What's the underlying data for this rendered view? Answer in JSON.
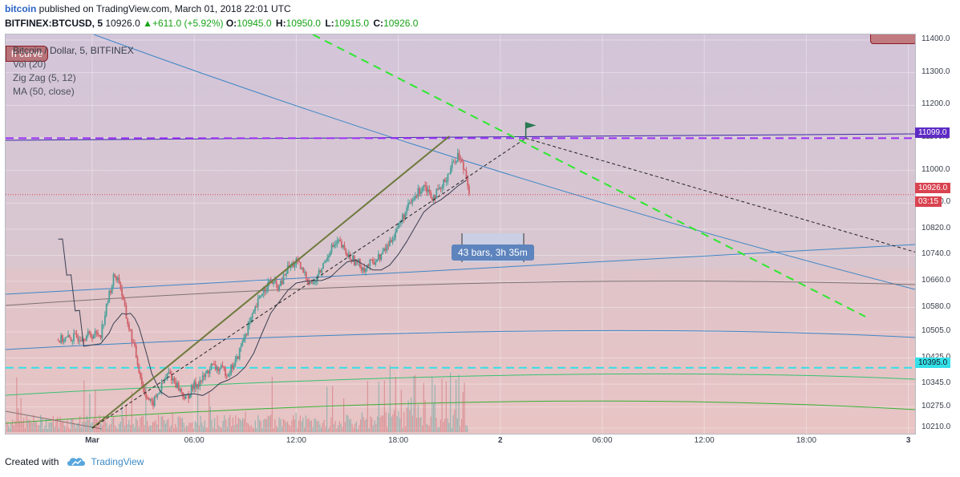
{
  "header": {
    "publisher": "bitcoin",
    "published_text": "published on TradingView.com, March 01, 2018 22:01 UTC",
    "symbol": "BITFINEX:BTCUSD, 5",
    "last": "10926.0",
    "change": "+611.0 (+5.92%)",
    "o_label": "O:",
    "o": "10945.0",
    "h_label": "H:",
    "h": "10950.0",
    "l_label": "L:",
    "l": "10915.0",
    "c_label": "C:",
    "c": "10926.0"
  },
  "legend": {
    "series_title": "Bitcoin / Dollar, 5, BITFINEX",
    "badge": "h curve",
    "vol": "Vol (20)",
    "zigzag": "Zig Zag (5, 12)",
    "ma": "MA (50, close)"
  },
  "tooltip": "43 bars, 3h 35m",
  "price_tags": {
    "upper_line": "11099.0",
    "last_price": "10926.0",
    "countdown": "03:15",
    "lower_line": "10395.0"
  },
  "colors": {
    "up": "#4ca09a",
    "down": "#d0616a",
    "purple_line": "#9b2ff7",
    "cyan_line": "#35e0e8",
    "green_dash": "#2ee82e",
    "trend": "#6e7a3c"
  },
  "footer": {
    "created_with": "Created with",
    "brand": "TradingView"
  },
  "chart_data": {
    "type": "candlestick",
    "title": "Bitcoin / Dollar, 5, BITFINEX",
    "ylim": [
      10190,
      11430
    ],
    "y_ticks": [
      "11400.0",
      "11300.0",
      "11200.0",
      "11100.0",
      "11000.0",
      "10900.0",
      "10820.0",
      "10740.0",
      "10660.0",
      "10580.0",
      "10505.0",
      "10425.0",
      "10345.0",
      "10275.0",
      "10210.0"
    ],
    "x_ticks": [
      "Mar",
      "06:00",
      "12:00",
      "18:00",
      "2",
      "06:00",
      "12:00",
      "18:00",
      "3"
    ],
    "close_path": [
      [
        -2,
        10480
      ],
      [
        0.5,
        10500
      ],
      [
        1,
        10620
      ],
      [
        1.3,
        10680
      ],
      [
        1.6,
        10660
      ],
      [
        2,
        10550
      ],
      [
        2.5,
        10450
      ],
      [
        3,
        10330
      ],
      [
        3.5,
        10280
      ],
      [
        4,
        10330
      ],
      [
        4.5,
        10380
      ],
      [
        5,
        10340
      ],
      [
        5.5,
        10300
      ],
      [
        6,
        10340
      ],
      [
        6.5,
        10360
      ],
      [
        7,
        10400
      ],
      [
        7.5,
        10390
      ],
      [
        8,
        10380
      ],
      [
        8.5,
        10420
      ],
      [
        9,
        10500
      ],
      [
        9.5,
        10560
      ],
      [
        10,
        10630
      ],
      [
        10.5,
        10660
      ],
      [
        11,
        10640
      ],
      [
        11.5,
        10700
      ],
      [
        12,
        10720
      ],
      [
        12.5,
        10680
      ],
      [
        13,
        10650
      ],
      [
        13.5,
        10700
      ],
      [
        14,
        10760
      ],
      [
        14.5,
        10780
      ],
      [
        15,
        10740
      ],
      [
        15.5,
        10720
      ],
      [
        16,
        10700
      ],
      [
        16.5,
        10720
      ],
      [
        17,
        10740
      ],
      [
        17.5,
        10780
      ],
      [
        18,
        10830
      ],
      [
        18.5,
        10880
      ],
      [
        19,
        10920
      ],
      [
        19.5,
        10960
      ],
      [
        20,
        10920
      ],
      [
        20.5,
        10940
      ],
      [
        21,
        11000
      ],
      [
        21.5,
        11050
      ],
      [
        22,
        10990
      ],
      [
        22.2,
        10926
      ]
    ],
    "volume_bars": 330,
    "horizontal_levels": [
      11099.0,
      10926.0,
      10395.0
    ],
    "annotation": "43 bars, 3h 35m"
  }
}
